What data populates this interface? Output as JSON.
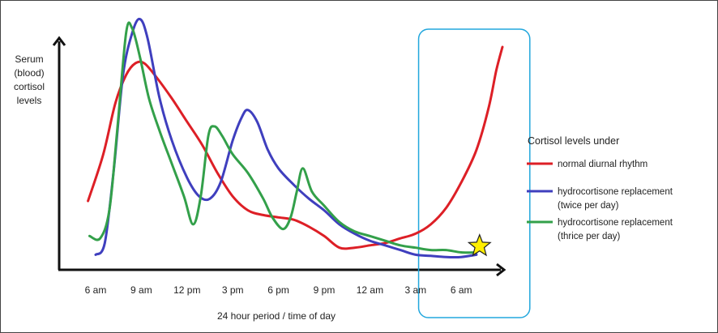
{
  "chart_data": {
    "type": "line",
    "ylabel_lines": [
      "Serum",
      "(blood)",
      "cortisol",
      "levels"
    ],
    "xlabel": "24 hour period / time of day",
    "x_ticks": [
      "6 am",
      "9 am",
      "12 pm",
      "3 pm",
      "6 pm",
      "9 pm",
      "12 am",
      "3 am",
      "6 am"
    ],
    "x_range_hours": [
      4.3,
      33.2
    ],
    "y_range": [
      0,
      100
    ],
    "grid": false,
    "legend_title": "Cortisol levels under",
    "legend_position": "right",
    "highlight_window_hours": [
      27.2,
      34.5
    ],
    "highlight_color": "#22a7dd",
    "star_marker": {
      "x": 31.2,
      "y": 6,
      "color": "#ffee00"
    },
    "series": [
      {
        "name": "normal diurnal rhythm",
        "legend_lines": [
          "normal diurnal rhythm"
        ],
        "color": "#dd1f26",
        "points": [
          [
            5.5,
            26
          ],
          [
            6.5,
            46
          ],
          [
            7.3,
            68
          ],
          [
            8.0,
            80
          ],
          [
            8.6,
            85
          ],
          [
            9.2,
            85
          ],
          [
            10.0,
            79
          ],
          [
            11.0,
            70
          ],
          [
            12.0,
            60
          ],
          [
            13.0,
            50
          ],
          [
            14.0,
            38
          ],
          [
            15.0,
            28
          ],
          [
            16.0,
            22
          ],
          [
            17.0,
            20
          ],
          [
            18.0,
            19
          ],
          [
            19.0,
            18
          ],
          [
            20.0,
            15
          ],
          [
            21.0,
            11
          ],
          [
            22.0,
            6
          ],
          [
            23.0,
            6
          ],
          [
            24.0,
            7
          ],
          [
            25.0,
            8
          ],
          [
            26.0,
            10
          ],
          [
            27.0,
            12
          ],
          [
            28.0,
            16
          ],
          [
            29.0,
            23
          ],
          [
            30.0,
            34
          ],
          [
            31.0,
            48
          ],
          [
            31.8,
            66
          ],
          [
            32.3,
            82
          ],
          [
            32.7,
            92
          ]
        ]
      },
      {
        "name": "hydrocortisone replacement (twice per day)",
        "legend_lines": [
          "hydrocortisone replacement",
          "(twice per day)"
        ],
        "color": "#3f3fbe",
        "points": [
          [
            6.0,
            3
          ],
          [
            6.6,
            8
          ],
          [
            7.2,
            40
          ],
          [
            7.8,
            80
          ],
          [
            8.4,
            98
          ],
          [
            8.9,
            104
          ],
          [
            9.4,
            96
          ],
          [
            10.2,
            70
          ],
          [
            11.0,
            52
          ],
          [
            12.0,
            36
          ],
          [
            12.8,
            28
          ],
          [
            13.5,
            27
          ],
          [
            14.2,
            34
          ],
          [
            15.0,
            52
          ],
          [
            15.6,
            62
          ],
          [
            16.0,
            65
          ],
          [
            16.6,
            60
          ],
          [
            17.3,
            48
          ],
          [
            18.0,
            40
          ],
          [
            19.0,
            33
          ],
          [
            20.0,
            27
          ],
          [
            21.0,
            22
          ],
          [
            22.0,
            16
          ],
          [
            23.0,
            12
          ],
          [
            24.0,
            9
          ],
          [
            25.0,
            7
          ],
          [
            26.0,
            5
          ],
          [
            27.0,
            3
          ],
          [
            28.0,
            2.5
          ],
          [
            29.0,
            2
          ],
          [
            30.0,
            2
          ],
          [
            31.0,
            3
          ]
        ]
      },
      {
        "name": "hydrocortisone replacement (thrice per day)",
        "legend_lines": [
          "hydrocortisone replacement",
          "(thrice per day)"
        ],
        "color": "#33a04a",
        "points": [
          [
            5.6,
            11
          ],
          [
            6.3,
            10
          ],
          [
            6.9,
            22
          ],
          [
            7.4,
            55
          ],
          [
            8.0,
            98
          ],
          [
            8.4,
            100
          ],
          [
            8.9,
            88
          ],
          [
            9.5,
            70
          ],
          [
            10.2,
            56
          ],
          [
            11.0,
            42
          ],
          [
            11.8,
            28
          ],
          [
            12.4,
            16
          ],
          [
            12.9,
            28
          ],
          [
            13.4,
            54
          ],
          [
            13.8,
            58
          ],
          [
            14.3,
            54
          ],
          [
            15.0,
            46
          ],
          [
            16.0,
            38
          ],
          [
            17.0,
            27
          ],
          [
            17.6,
            19
          ],
          [
            18.3,
            14
          ],
          [
            18.8,
            19
          ],
          [
            19.2,
            30
          ],
          [
            19.6,
            40
          ],
          [
            20.2,
            30
          ],
          [
            21.0,
            24
          ],
          [
            22.0,
            17
          ],
          [
            23.0,
            13
          ],
          [
            24.0,
            11
          ],
          [
            25.0,
            9
          ],
          [
            26.0,
            7
          ],
          [
            27.0,
            6
          ],
          [
            28.0,
            5
          ],
          [
            29.0,
            5
          ],
          [
            30.0,
            4
          ],
          [
            31.0,
            4
          ]
        ]
      }
    ]
  }
}
